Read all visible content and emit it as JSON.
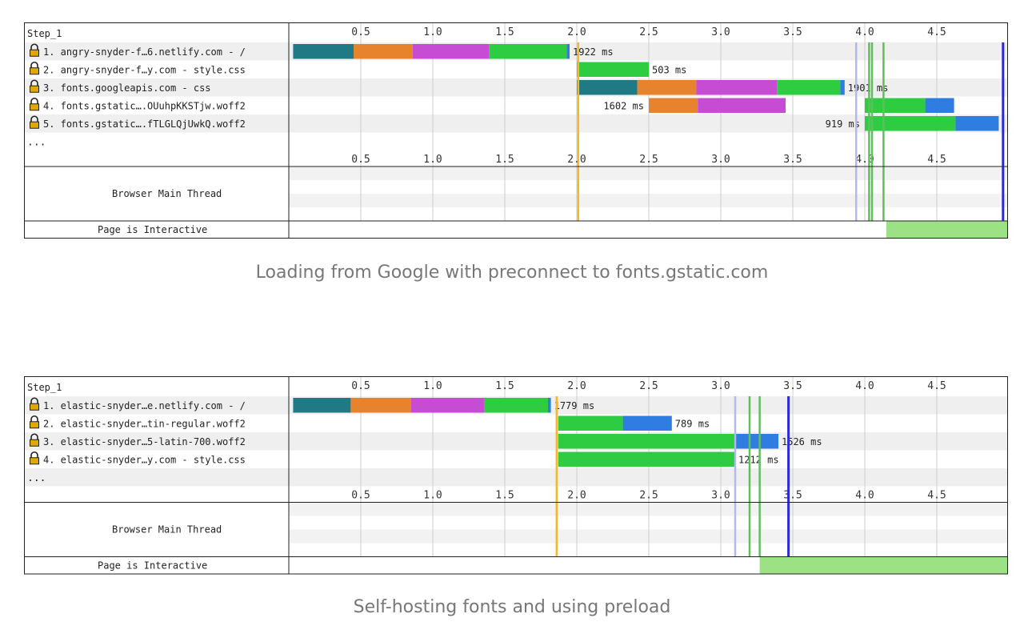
{
  "colors": {
    "dns": "#1f7a85",
    "connect": "#e8832d",
    "ssl": "#c74cd4",
    "ttfb": "#2ecc40",
    "download": "#2f7de1",
    "start_render": "#f5b731",
    "dom_interactive": "#b6b6f0",
    "dom_content_loaded": "#5fbf5f",
    "on_load": "#2b2bd6",
    "interactive_fill": "#9ce184",
    "row_alt": "#efefef",
    "grid": "#cccccc",
    "lock": "#e0a800"
  },
  "captions": [
    "Loading from Google with preconnect to fonts.gstatic.com",
    "Self-hosting fonts and using preload"
  ],
  "chart_data": [
    {
      "type": "waterfall",
      "title": "Step_1",
      "x_ticks": [
        "0.5",
        "1.0",
        "1.5",
        "2.0",
        "2.5",
        "3.0",
        "3.5",
        "4.0",
        "4.5"
      ],
      "x_unit": "seconds",
      "xlim": [
        0,
        5.0
      ],
      "requests": [
        {
          "label": "1. angry-snyder-f…6.netlify.com - /",
          "start": 0.03,
          "segments": [
            [
              "dns",
              0.03,
              0.45
            ],
            [
              "connect",
              0.45,
              0.86
            ],
            [
              "ssl",
              0.86,
              1.39
            ],
            [
              "ttfb",
              1.39,
              1.93
            ],
            [
              "download",
              1.93,
              1.95
            ]
          ],
          "duration": "1922 ms"
        },
        {
          "label": "2. angry-snyder-f…y.com - style.css",
          "segments": [
            [
              "ttfb",
              2.0,
              2.5
            ]
          ],
          "duration": "503 ms"
        },
        {
          "label": "3. fonts.googleapis.com - css",
          "segments": [
            [
              "dns",
              2.0,
              2.42
            ],
            [
              "connect",
              2.42,
              2.83
            ],
            [
              "ssl",
              2.83,
              3.39
            ],
            [
              "ttfb",
              3.39,
              3.83
            ],
            [
              "download",
              3.83,
              3.86
            ]
          ],
          "duration": "1901 ms"
        },
        {
          "label": "4. fonts.gstatic….OUuhpKKSTjw.woff2",
          "segments": [
            [
              "connect",
              2.5,
              2.84
            ],
            [
              "ssl",
              2.84,
              3.45
            ],
            [
              "ttfb",
              4.0,
              4.42
            ],
            [
              "download",
              4.42,
              4.62
            ]
          ],
          "duration": "1602 ms"
        },
        {
          "label": "5. fonts.gstatic….fTLGLQjUwkQ.woff2",
          "segments": [
            [
              "ttfb",
              4.0,
              4.63
            ],
            [
              "download",
              4.63,
              4.93
            ]
          ],
          "duration": "919 ms"
        }
      ],
      "more_label": "...",
      "milestones": [
        {
          "type": "start_render",
          "t": 2.01
        },
        {
          "type": "dom_interactive",
          "t": 3.94
        },
        {
          "type": "dom_content_loaded",
          "t": 4.03
        },
        {
          "type": "dom_content_loaded",
          "t": 4.05
        },
        {
          "type": "dom_content_loaded",
          "t": 4.13
        },
        {
          "type": "on_load",
          "t": 4.96
        }
      ],
      "main_thread_label": "Browser Main Thread",
      "interactive_label": "Page is Interactive",
      "interactive_from": 4.15
    },
    {
      "type": "waterfall",
      "title": "Step_1",
      "x_ticks": [
        "0.5",
        "1.0",
        "1.5",
        "2.0",
        "2.5",
        "3.0",
        "3.5",
        "4.0",
        "4.5"
      ],
      "x_unit": "seconds",
      "xlim": [
        0,
        5.0
      ],
      "requests": [
        {
          "label": "1. elastic-snyder…e.netlify.com - /",
          "segments": [
            [
              "dns",
              0.03,
              0.43
            ],
            [
              "connect",
              0.43,
              0.85
            ],
            [
              "ssl",
              0.85,
              1.36
            ],
            [
              "ttfb",
              1.36,
              1.8
            ],
            [
              "download",
              1.8,
              1.82
            ]
          ],
          "duration": "1779 ms"
        },
        {
          "label": "2. elastic-snyder…tin-regular.woff2",
          "segments": [
            [
              "ttfb",
              1.87,
              2.32
            ],
            [
              "download",
              2.32,
              2.66
            ]
          ],
          "duration": "789 ms"
        },
        {
          "label": "3. elastic-snyder…5-latin-700.woff2",
          "segments": [
            [
              "ttfb",
              1.87,
              3.1
            ],
            [
              "download",
              3.1,
              3.4
            ]
          ],
          "duration": "1526 ms"
        },
        {
          "label": "4. elastic-snyder…y.com - style.css",
          "segments": [
            [
              "ttfb",
              1.87,
              3.1
            ]
          ],
          "duration": "1212 ms"
        }
      ],
      "more_label": "...",
      "milestones": [
        {
          "type": "start_render",
          "t": 1.86
        },
        {
          "type": "dom_interactive",
          "t": 3.1
        },
        {
          "type": "dom_content_loaded",
          "t": 3.2
        },
        {
          "type": "dom_content_loaded",
          "t": 3.27
        },
        {
          "type": "on_load",
          "t": 3.47
        }
      ],
      "main_thread_label": "Browser Main Thread",
      "interactive_label": "Page is Interactive",
      "interactive_from": 3.27
    }
  ]
}
